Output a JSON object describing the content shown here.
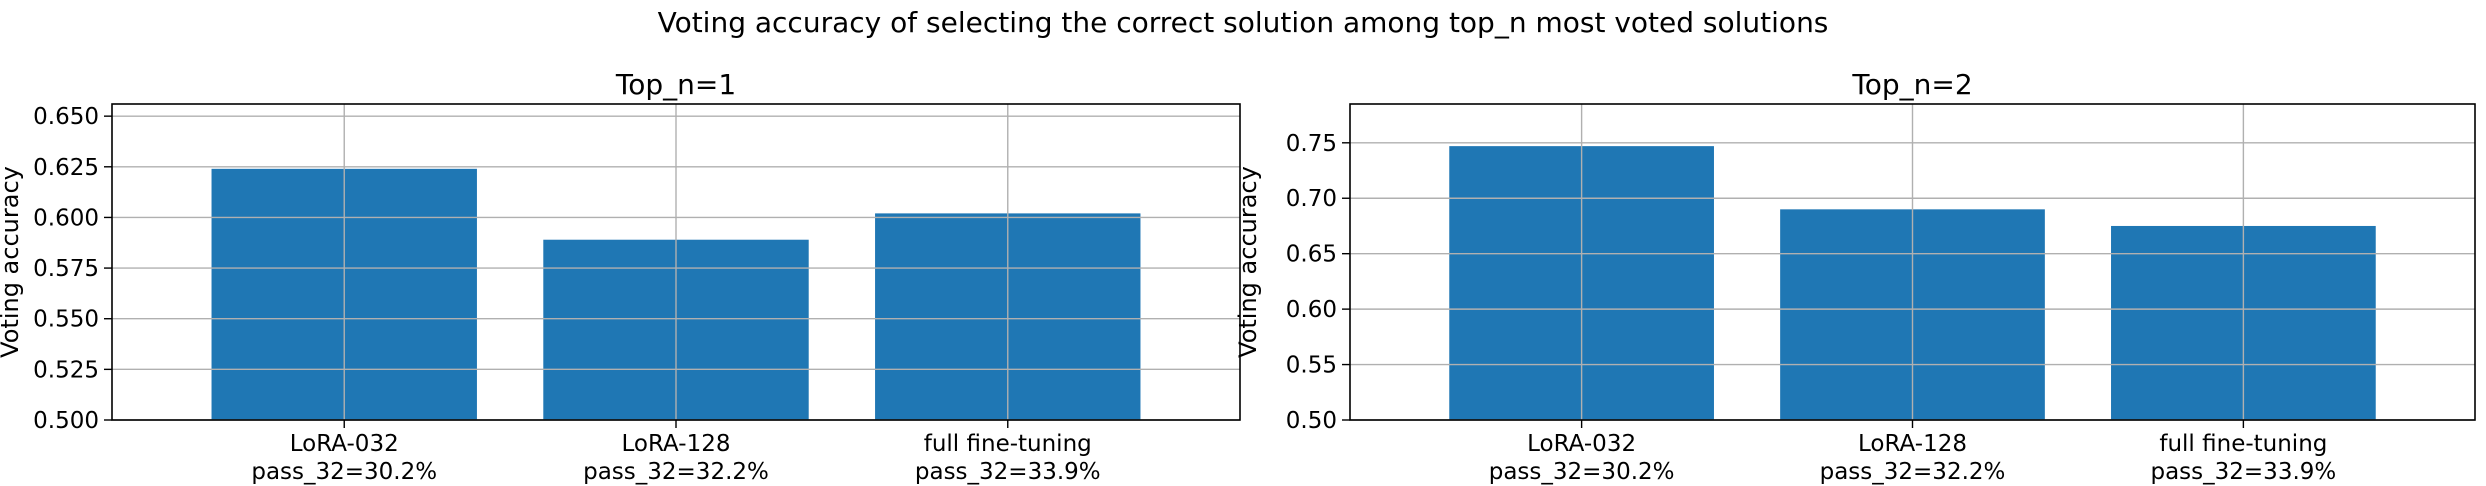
{
  "suptitle": "Voting accuracy of selecting the correct solution among top_n most voted solutions",
  "colors": {
    "bar": "#1f77b4",
    "grid": "#b0b0b0",
    "axis": "#000000"
  },
  "chart_data": [
    {
      "type": "bar",
      "title": "Top_n=1",
      "xlabel": "",
      "ylabel": "Voting accuracy",
      "categories": [
        [
          "LoRA-032",
          "pass_32=30.2%"
        ],
        [
          "LoRA-128",
          "pass_32=32.2%"
        ],
        [
          "full fine-tuning",
          "pass_32=33.9%"
        ]
      ],
      "values": [
        0.624,
        0.589,
        0.602
      ],
      "ylim": [
        0.5,
        0.656
      ],
      "yticks": [
        0.5,
        0.525,
        0.55,
        0.575,
        0.6,
        0.625,
        0.65
      ],
      "ytick_labels": [
        "0.500",
        "0.525",
        "0.550",
        "0.575",
        "0.600",
        "0.625",
        "0.650"
      ],
      "grid": true
    },
    {
      "type": "bar",
      "title": "Top_n=2",
      "xlabel": "",
      "ylabel": "Voting accuracy",
      "categories": [
        [
          "LoRA-032",
          "pass_32=30.2%"
        ],
        [
          "LoRA-128",
          "pass_32=32.2%"
        ],
        [
          "full fine-tuning",
          "pass_32=33.9%"
        ]
      ],
      "values": [
        0.747,
        0.69,
        0.675
      ],
      "ylim": [
        0.5,
        0.785
      ],
      "yticks": [
        0.5,
        0.55,
        0.6,
        0.65,
        0.7,
        0.75
      ],
      "ytick_labels": [
        "0.50",
        "0.55",
        "0.60",
        "0.65",
        "0.70",
        "0.75"
      ],
      "grid": true
    }
  ]
}
